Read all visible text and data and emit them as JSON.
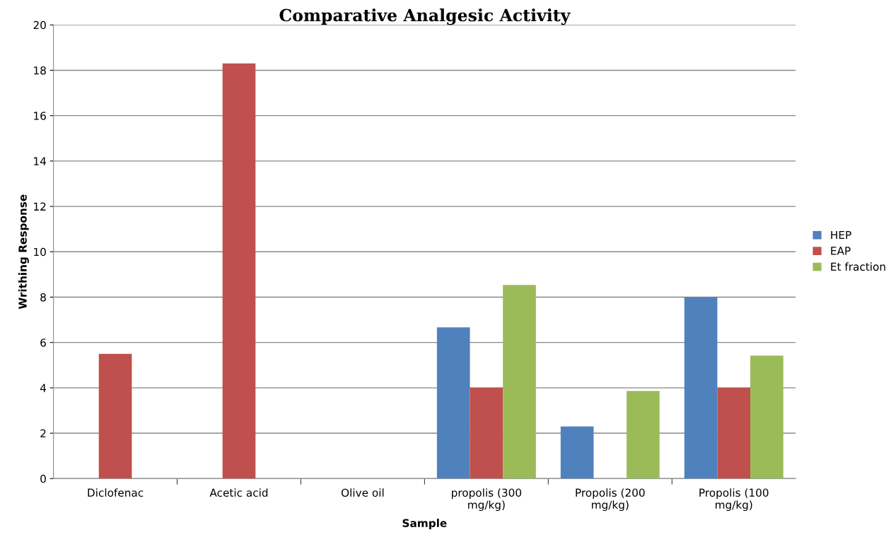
{
  "chart_data": {
    "type": "bar",
    "title": "Comparative Analgesic Activity",
    "xlabel": "Sample",
    "ylabel": "Writhing Response",
    "categories": [
      "Diclofenac",
      "Acetic acid",
      "Olive oil",
      "propolis (300\nmg/kg)",
      "Propolis (200\nmg/kg)",
      "Propolis (100\nmg/kg)"
    ],
    "series": [
      {
        "name": "HEP",
        "color": "#4f81bd",
        "values": [
          null,
          null,
          null,
          6.67,
          2.3,
          8.0
        ]
      },
      {
        "name": "EAP",
        "color": "#c0504d",
        "values": [
          5.5,
          18.3,
          null,
          4.0,
          null,
          4.0
        ]
      },
      {
        "name": "Et fraction",
        "color": "#9bbb59",
        "values": [
          null,
          null,
          null,
          8.54,
          3.86,
          5.42
        ]
      }
    ],
    "ylim": [
      0,
      20
    ],
    "yticks": [
      0,
      2,
      4,
      6,
      8,
      10,
      12,
      14,
      16,
      18,
      20
    ],
    "grid": "y",
    "legend": "right"
  }
}
